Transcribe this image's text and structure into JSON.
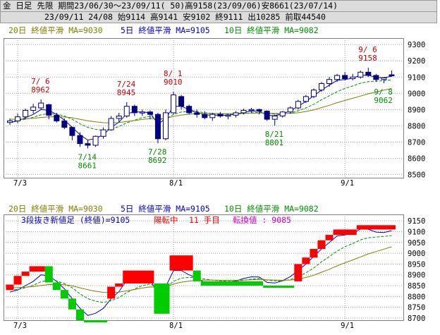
{
  "header": {
    "line1": "金 日足 先限 期間23/06/30〜23/09/11( 50)高9158(23/09/06)安8661(23/07/14)",
    "line2": "23/09/11 24/08 始9114 高9141 安9102 終9111 出10285 前取44540"
  },
  "top_chart": {
    "legend": {
      "ma20": "20日 終値平滑 MA=9030",
      "ma5": "5日 終値平滑 MA=9105",
      "ma10": "10日 終値平滑 MA=9082"
    },
    "annotations": [
      {
        "date": "7/6",
        "value": "8962",
        "color": "#d00000"
      },
      {
        "date": "7/14",
        "value": "8661",
        "color": "#009000"
      },
      {
        "date": "7/24",
        "value": "8945",
        "color": "#d00000"
      },
      {
        "date": "7/28",
        "value": "8692",
        "color": "#009000"
      },
      {
        "date": "8/1",
        "value": "9010",
        "color": "#d00000"
      },
      {
        "date": "8/21",
        "value": "8801",
        "color": "#009000"
      },
      {
        "date": "9/6",
        "value": "9158",
        "color": "#d00000"
      },
      {
        "date": "9/8",
        "value": "9062",
        "color": "#009000"
      }
    ]
  },
  "bottom_chart": {
    "legend": {
      "ma20": "20日 終値平滑 MA=9030",
      "ma5": "5日 終値平滑 MA=9105",
      "ma10": "10日 終値平滑 MA=9082"
    },
    "info": {
      "sanbon": "3段抜き新値足 (終値)=9105",
      "state": "陽転中",
      "count": "11 手目",
      "reversal": "転換値 : 9085"
    }
  },
  "colors": {
    "up_candle": "#ffffff",
    "down_candle": "#000080",
    "ma5": "#0000cc",
    "ma10": "#009000",
    "ma20": "#808000",
    "brick_up": "#ff0000",
    "brick_down": "#00cc00",
    "grid": "#9a9a9a"
  },
  "chart_data": [
    {
      "type": "candlestick",
      "title": "金 日足 先限",
      "x_labels": [
        "7/3",
        "8/1",
        "9/1"
      ],
      "y_ticks": [
        8500,
        8600,
        8700,
        8800,
        8900,
        9000,
        9100,
        9200,
        9300
      ],
      "ylim": [
        8480,
        9340
      ],
      "grid": true,
      "dates": [
        "6/30",
        "7/3",
        "7/4",
        "7/5",
        "7/6",
        "7/7",
        "7/10",
        "7/11",
        "7/12",
        "7/13",
        "7/14",
        "7/18",
        "7/19",
        "7/20",
        "7/21",
        "7/24",
        "7/25",
        "7/26",
        "7/27",
        "7/28",
        "7/31",
        "8/1",
        "8/2",
        "8/3",
        "8/4",
        "8/7",
        "8/8",
        "8/9",
        "8/10",
        "8/14",
        "8/15",
        "8/16",
        "8/17",
        "8/18",
        "8/21",
        "8/22",
        "8/23",
        "8/24",
        "8/25",
        "8/28",
        "8/29",
        "8/30",
        "8/31",
        "9/1",
        "9/4",
        "9/5",
        "9/6",
        "9/7",
        "9/8",
        "9/11"
      ],
      "ohlc": [
        [
          8820,
          8845,
          8805,
          8830
        ],
        [
          8830,
          8875,
          8815,
          8855
        ],
        [
          8855,
          8905,
          8840,
          8895
        ],
        [
          8895,
          8935,
          8875,
          8915
        ],
        [
          8910,
          8962,
          8900,
          8940
        ],
        [
          8930,
          8935,
          8840,
          8865
        ],
        [
          8865,
          8880,
          8820,
          8830
        ],
        [
          8830,
          8845,
          8780,
          8790
        ],
        [
          8790,
          8795,
          8710,
          8740
        ],
        [
          8740,
          8760,
          8670,
          8690
        ],
        [
          8690,
          8710,
          8661,
          8680
        ],
        [
          8680,
          8740,
          8670,
          8735
        ],
        [
          8735,
          8790,
          8720,
          8775
        ],
        [
          8775,
          8860,
          8770,
          8845
        ],
        [
          8845,
          8880,
          8820,
          8860
        ],
        [
          8860,
          8945,
          8850,
          8920
        ],
        [
          8920,
          8930,
          8860,
          8880
        ],
        [
          8880,
          8900,
          8860,
          8885
        ],
        [
          8885,
          8895,
          8840,
          8870
        ],
        [
          8870,
          8880,
          8692,
          8720
        ],
        [
          8720,
          8900,
          8710,
          8880
        ],
        [
          8880,
          9010,
          8870,
          8990
        ],
        [
          8980,
          8990,
          8900,
          8920
        ],
        [
          8920,
          8930,
          8870,
          8880
        ],
        [
          8880,
          8900,
          8850,
          8870
        ],
        [
          8870,
          8890,
          8840,
          8850
        ],
        [
          8850,
          8880,
          8830,
          8870
        ],
        [
          8870,
          8885,
          8850,
          8860
        ],
        [
          8860,
          8875,
          8840,
          8865
        ],
        [
          8865,
          8890,
          8850,
          8880
        ],
        [
          8880,
          8905,
          8870,
          8895
        ],
        [
          8895,
          8910,
          8880,
          8900
        ],
        [
          8900,
          8905,
          8870,
          8890
        ],
        [
          8890,
          8895,
          8830,
          8840
        ],
        [
          8840,
          8870,
          8801,
          8860
        ],
        [
          8860,
          8890,
          8850,
          8885
        ],
        [
          8885,
          8920,
          8875,
          8910
        ],
        [
          8910,
          8960,
          8900,
          8950
        ],
        [
          8950,
          8990,
          8940,
          8980
        ],
        [
          8980,
          9030,
          8970,
          9020
        ],
        [
          9020,
          9070,
          9010,
          9060
        ],
        [
          9060,
          9100,
          9040,
          9085
        ],
        [
          9085,
          9120,
          9070,
          9110
        ],
        [
          9110,
          9130,
          9080,
          9090
        ],
        [
          9090,
          9120,
          9080,
          9100
        ],
        [
          9100,
          9140,
          9090,
          9130
        ],
        [
          9130,
          9158,
          9100,
          9110
        ],
        [
          9110,
          9120,
          9070,
          9085
        ],
        [
          9085,
          9100,
          9062,
          9095
        ],
        [
          9114,
          9141,
          9102,
          9111
        ]
      ],
      "series": [
        {
          "name": "5日 終値平滑",
          "values": [
            8820,
            8830,
            8850,
            8870,
            8900,
            8895,
            8870,
            8835,
            8790,
            8745,
            8712,
            8722,
            8745,
            8790,
            8822,
            8875,
            8885,
            8885,
            8880,
            8810,
            8845,
            8920,
            8920,
            8900,
            8885,
            8865,
            8868,
            8864,
            8865,
            8872,
            8883,
            8891,
            8890,
            8865,
            8862,
            8873,
            8892,
            8920,
            8950,
            8985,
            9020,
            9050,
            9080,
            9085,
            9093,
            9112,
            9111,
            9098,
            9096,
            9105
          ]
        },
        {
          "name": "10日 終値平滑",
          "values": [
            8830,
            8832,
            8840,
            8852,
            8868,
            8875,
            8872,
            8860,
            8840,
            8812,
            8790,
            8778,
            8772,
            8780,
            8795,
            8818,
            8835,
            8850,
            8858,
            8840,
            8842,
            8870,
            8885,
            8888,
            8888,
            8880,
            8876,
            8872,
            8870,
            8871,
            8875,
            8880,
            8883,
            8876,
            8872,
            8872,
            8878,
            8892,
            8910,
            8932,
            8960,
            8985,
            9010,
            9030,
            9045,
            9062,
            9072,
            9075,
            9078,
            9082
          ]
        },
        {
          "name": "20日 終値平滑",
          "values": [
            8840,
            8841,
            8843,
            8846,
            8851,
            8855,
            8856,
            8854,
            8849,
            8840,
            8831,
            8824,
            8819,
            8818,
            8820,
            8826,
            8832,
            8839,
            8844,
            8843,
            8845,
            8858,
            8866,
            8871,
            8875,
            8876,
            8876,
            8875,
            8875,
            8875,
            8876,
            8877,
            8879,
            8877,
            8876,
            8875,
            8876,
            8880,
            8888,
            8898,
            8912,
            8926,
            8942,
            8956,
            8969,
            8983,
            8997,
            9008,
            9019,
            9030
          ]
        }
      ],
      "annotations": [
        {
          "x": "7/6",
          "y": 8962,
          "label": "7/ 6\n8962"
        },
        {
          "x": "7/14",
          "y": 8661,
          "label": "7/14\n8661"
        },
        {
          "x": "7/24",
          "y": 8945,
          "label": "7/24\n8945"
        },
        {
          "x": "7/28",
          "y": 8692,
          "label": "7/28\n8692"
        },
        {
          "x": "8/1",
          "y": 9010,
          "label": "8/ 1\n9010"
        },
        {
          "x": "8/21",
          "y": 8801,
          "label": "8/21\n8801"
        },
        {
          "x": "9/6",
          "y": 9158,
          "label": "9/ 6\n9158"
        },
        {
          "x": "9/8",
          "y": 9062,
          "label": "9/ 8\n9062"
        }
      ]
    },
    {
      "type": "bar",
      "subtype": "3-line-break",
      "x_labels": [
        "7/3",
        "8/1",
        "9/1"
      ],
      "y_ticks": [
        8700,
        8750,
        8800,
        8850,
        8900,
        8950,
        9000,
        9050,
        9100,
        9150
      ],
      "ylim": [
        8690,
        9180
      ],
      "grid": true,
      "bricks": [
        {
          "i": 0,
          "lo": 8830,
          "hi": 8855,
          "dir": "up"
        },
        {
          "i": 1,
          "lo": 8855,
          "hi": 8895,
          "dir": "up"
        },
        {
          "i": 2,
          "lo": 8895,
          "hi": 8915,
          "dir": "up"
        },
        {
          "i": 3,
          "lo": 8915,
          "hi": 8940,
          "dir": "up"
        },
        {
          "i": 5,
          "lo": 8865,
          "hi": 8940,
          "dir": "down"
        },
        {
          "i": 6,
          "lo": 8830,
          "hi": 8865,
          "dir": "down"
        },
        {
          "i": 7,
          "lo": 8790,
          "hi": 8830,
          "dir": "down"
        },
        {
          "i": 8,
          "lo": 8740,
          "hi": 8790,
          "dir": "down"
        },
        {
          "i": 9,
          "lo": 8690,
          "hi": 8740,
          "dir": "down"
        },
        {
          "i": 10,
          "lo": 8680,
          "hi": 8690,
          "dir": "down"
        },
        {
          "i": 13,
          "lo": 8790,
          "hi": 8845,
          "dir": "up"
        },
        {
          "i": 14,
          "lo": 8845,
          "hi": 8860,
          "dir": "up"
        },
        {
          "i": 15,
          "lo": 8860,
          "hi": 8920,
          "dir": "up"
        },
        {
          "i": 19,
          "lo": 8720,
          "hi": 8860,
          "dir": "down"
        },
        {
          "i": 21,
          "lo": 8920,
          "hi": 8990,
          "dir": "up"
        },
        {
          "i": 24,
          "lo": 8870,
          "hi": 8920,
          "dir": "down"
        },
        {
          "i": 25,
          "lo": 8850,
          "hi": 8870,
          "dir": "down"
        },
        {
          "i": 33,
          "lo": 8840,
          "hi": 8850,
          "dir": "down"
        },
        {
          "i": 37,
          "lo": 8870,
          "hi": 8950,
          "dir": "up"
        },
        {
          "i": 38,
          "lo": 8950,
          "hi": 8980,
          "dir": "up"
        },
        {
          "i": 39,
          "lo": 8980,
          "hi": 9020,
          "dir": "up"
        },
        {
          "i": 40,
          "lo": 9020,
          "hi": 9060,
          "dir": "up"
        },
        {
          "i": 41,
          "lo": 9060,
          "hi": 9085,
          "dir": "up"
        },
        {
          "i": 42,
          "lo": 9085,
          "hi": 9110,
          "dir": "up"
        },
        {
          "i": 45,
          "lo": 9110,
          "hi": 9130,
          "dir": "up"
        }
      ],
      "turning_value": 9085,
      "last_close": 9105
    }
  ]
}
